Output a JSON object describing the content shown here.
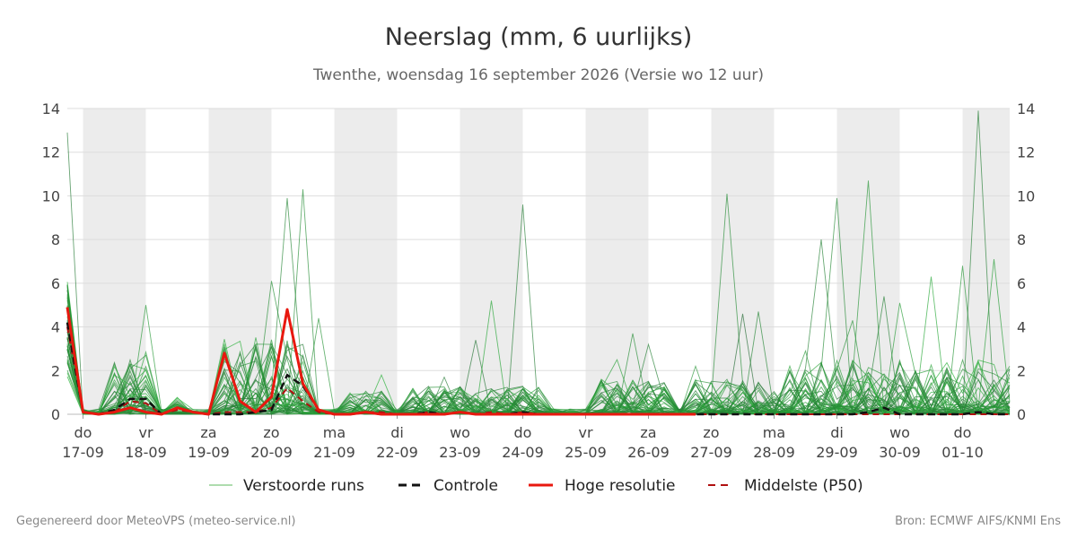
{
  "chart_data": {
    "type": "line",
    "title": "Neerslag (mm, 6 uurlijks)",
    "subtitle": "Twenthe, woensdag 16 september 2026 (Versie wo 12 uur)",
    "ylim": [
      0,
      14
    ],
    "yticks": [
      0,
      2,
      4,
      6,
      8,
      10,
      12,
      14
    ],
    "x_unit": "6-uurlijkse stappen vanaf 16-09 18u",
    "x_range": [
      0,
      60
    ],
    "shaded_days": [
      "17-09",
      "19-09",
      "21-09",
      "23-09",
      "25-09",
      "27-09",
      "29-09",
      "01-10"
    ],
    "xticks": [
      {
        "day": "do",
        "date": "17-09",
        "x": 1
      },
      {
        "day": "vr",
        "date": "18-09",
        "x": 5
      },
      {
        "day": "za",
        "date": "19-09",
        "x": 9
      },
      {
        "day": "zo",
        "date": "20-09",
        "x": 13
      },
      {
        "day": "ma",
        "date": "21-09",
        "x": 17
      },
      {
        "day": "di",
        "date": "22-09",
        "x": 21
      },
      {
        "day": "wo",
        "date": "23-09",
        "x": 25
      },
      {
        "day": "do",
        "date": "24-09",
        "x": 29
      },
      {
        "day": "vr",
        "date": "25-09",
        "x": 33
      },
      {
        "day": "za",
        "date": "26-09",
        "x": 37
      },
      {
        "day": "zo",
        "date": "27-09",
        "x": 41
      },
      {
        "day": "ma",
        "date": "28-09",
        "x": 45
      },
      {
        "day": "di",
        "date": "29-09",
        "x": 49
      },
      {
        "day": "wo",
        "date": "30-09",
        "x": 53
      },
      {
        "day": "do",
        "date": "01-10",
        "x": 57
      }
    ],
    "series": [
      {
        "name": "Controle",
        "color": "#111111",
        "style": "dashed",
        "values": [
          4.2,
          0.1,
          0,
          0.2,
          0.7,
          0.7,
          0,
          0.3,
          0.1,
          0,
          0,
          0,
          0.1,
          0.2,
          1.8,
          1.3,
          0.2,
          0,
          0,
          0.1,
          0,
          0,
          0,
          0.1,
          0,
          0.1,
          0,
          0,
          0,
          0.1,
          0,
          0,
          0,
          0,
          0,
          0,
          0,
          0,
          0,
          0,
          0,
          0,
          0,
          0,
          0,
          0,
          0,
          0,
          0,
          0,
          0,
          0.1,
          0.3,
          0,
          0,
          0,
          0,
          0,
          0.1,
          0,
          0
        ]
      },
      {
        "name": "Hoge resolutie",
        "color": "#e8180f",
        "style": "solid",
        "values": [
          4.9,
          0.1,
          0,
          0.1,
          0.3,
          0.1,
          0,
          0.3,
          0.1,
          0,
          2.8,
          0.6,
          0.1,
          0.8,
          4.8,
          1.4,
          0.2,
          0,
          0,
          0.1,
          0,
          0,
          0,
          0,
          0,
          0.1,
          0,
          0,
          0,
          0,
          0,
          0,
          0,
          0,
          0,
          0,
          0,
          0,
          0,
          0,
          0
        ]
      },
      {
        "name": "Middelste (P50)",
        "color": "#b01010",
        "style": "dashed",
        "values": [
          4.0,
          0.1,
          0,
          0.1,
          0.6,
          0.5,
          0,
          0.2,
          0.1,
          0,
          0.1,
          0.1,
          0.1,
          0.3,
          1.2,
          0.6,
          0.1,
          0,
          0,
          0.1,
          0.1,
          0,
          0,
          0.1,
          0,
          0.1,
          0,
          0.1,
          0,
          0.1,
          0,
          0,
          0,
          0,
          0,
          0,
          0,
          0,
          0,
          0,
          0,
          0,
          0,
          0,
          0,
          0,
          0,
          0,
          0,
          0,
          0,
          0,
          0,
          0,
          0,
          0,
          0,
          0,
          0,
          0,
          0
        ]
      }
    ],
    "ensemble": {
      "name": "Verstoorde runs",
      "color": "#2e9e3e",
      "runs": 50,
      "notable_peaks": [
        {
          "x": 0,
          "y": 12.9
        },
        {
          "x": 5,
          "y": 5.0
        },
        {
          "x": 10,
          "y": 2.1
        },
        {
          "x": 13,
          "y": 6.1
        },
        {
          "x": 14,
          "y": 9.9
        },
        {
          "x": 15,
          "y": 10.3
        },
        {
          "x": 16,
          "y": 4.4
        },
        {
          "x": 20,
          "y": 1.8
        },
        {
          "x": 24,
          "y": 1.7
        },
        {
          "x": 26,
          "y": 3.4
        },
        {
          "x": 27,
          "y": 5.2
        },
        {
          "x": 29,
          "y": 9.6
        },
        {
          "x": 35,
          "y": 2.5
        },
        {
          "x": 36,
          "y": 3.7
        },
        {
          "x": 37,
          "y": 3.2
        },
        {
          "x": 40,
          "y": 2.2
        },
        {
          "x": 42,
          "y": 10.1
        },
        {
          "x": 43,
          "y": 4.6
        },
        {
          "x": 44,
          "y": 4.7
        },
        {
          "x": 47,
          "y": 2.9
        },
        {
          "x": 48,
          "y": 8.0
        },
        {
          "x": 49,
          "y": 9.9
        },
        {
          "x": 50,
          "y": 4.3
        },
        {
          "x": 51,
          "y": 10.7
        },
        {
          "x": 52,
          "y": 5.4
        },
        {
          "x": 53,
          "y": 5.1
        },
        {
          "x": 55,
          "y": 6.3
        },
        {
          "x": 57,
          "y": 6.8
        },
        {
          "x": 58,
          "y": 13.9
        },
        {
          "x": 59,
          "y": 7.1
        },
        {
          "x": 60,
          "y": 2.2
        }
      ]
    },
    "legend": {
      "position": "bottom",
      "entries": [
        {
          "label": "Verstoorde runs",
          "color": "#4caf50",
          "style": "thin"
        },
        {
          "label": "Controle",
          "color": "#111111",
          "style": "dashed"
        },
        {
          "label": "Hoge resolutie",
          "color": "#e8180f",
          "style": "solid"
        },
        {
          "label": "Middelste (P50)",
          "color": "#b01010",
          "style": "dashed"
        }
      ]
    },
    "grid": true
  },
  "footer": {
    "left": "Gegenereerd door MeteoVPS (meteo-service.nl)",
    "right": "Bron: ECMWF AIFS/KNMI Ens"
  }
}
